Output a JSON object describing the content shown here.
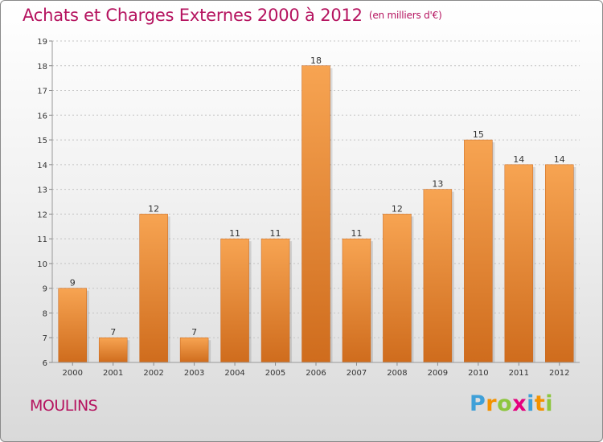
{
  "header": {
    "title": "Achats et Charges Externes 2000 à 2012",
    "unit": "(en milliers d'€)"
  },
  "footer": {
    "commune": "MOULINS",
    "logo_letters": [
      "P",
      "r",
      "o",
      "x",
      "i",
      "t",
      "i"
    ],
    "logo_colors": [
      "#3fa0d8",
      "#f39200",
      "#8dc63f",
      "#e5007e",
      "#3fa0d8",
      "#f39200",
      "#8dc63f"
    ]
  },
  "colors": {
    "title": "#b5135f",
    "bar_top": "#f7a452",
    "bar_bottom": "#cf6c1d"
  },
  "chart_data": {
    "type": "bar",
    "title": "Achats et Charges Externes 2000 à 2012",
    "subtitle": "(en milliers d'€)",
    "xlabel": "",
    "ylabel": "",
    "categories": [
      "2000",
      "2001",
      "2002",
      "2003",
      "2004",
      "2005",
      "2006",
      "2007",
      "2008",
      "2009",
      "2010",
      "2011",
      "2012"
    ],
    "values": [
      9,
      7,
      12,
      7,
      11,
      11,
      18,
      11,
      12,
      13,
      15,
      14,
      14
    ],
    "ylim": [
      6,
      19
    ],
    "yticks": [
      6,
      7,
      8,
      9,
      10,
      11,
      12,
      13,
      14,
      15,
      16,
      17,
      18,
      19
    ],
    "grid": true,
    "data_labels": true
  }
}
